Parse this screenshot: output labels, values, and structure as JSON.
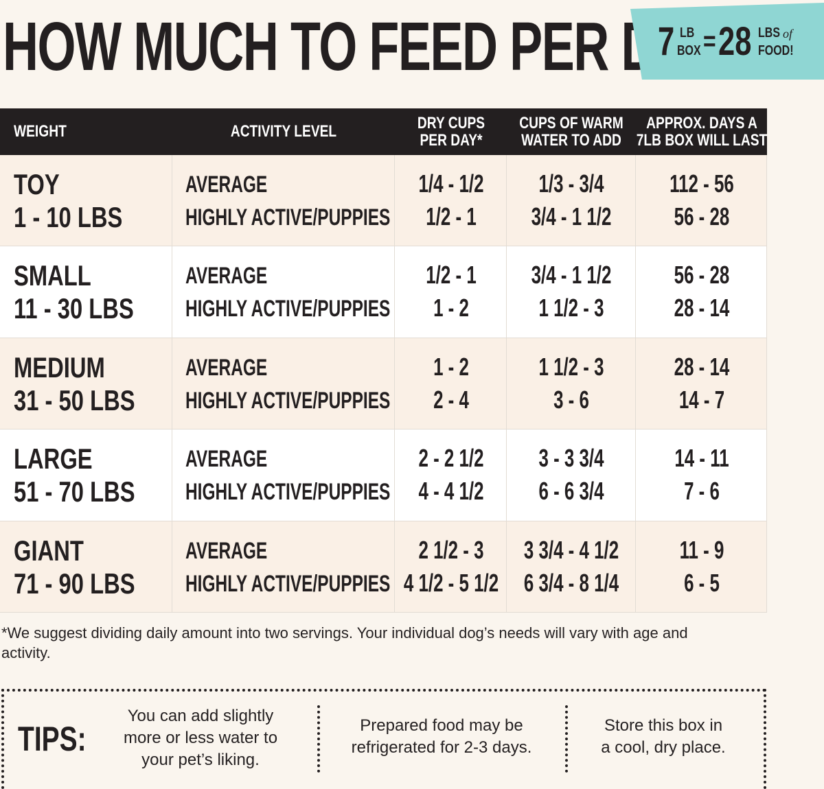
{
  "title": "HOW MUCH TO FEED PER DAY",
  "badge": {
    "left_number": "7",
    "left_unit": [
      "LB",
      "BOX"
    ],
    "equals": "=",
    "right_number": "28",
    "right_unit": [
      "LBS",
      "FOOD!"
    ],
    "right_of": "of"
  },
  "table": {
    "headers": [
      [
        "WEIGHT"
      ],
      [
        "ACTIVITY LEVEL"
      ],
      [
        "DRY CUPS",
        "PER DAY*"
      ],
      [
        "CUPS OF WARM",
        "WATER TO ADD"
      ],
      [
        "APPROX. DAYS A",
        "7LB BOX WILL LAST"
      ]
    ],
    "rows": [
      {
        "size": "TOY",
        "weight": "1 - 10 LBS",
        "levels": [
          {
            "activity": "AVERAGE",
            "dry": "1/4 - 1/2",
            "water": "1/3 - 3/4",
            "days": "112 - 56"
          },
          {
            "activity": "HIGHLY ACTIVE/PUPPIES",
            "dry": "1/2 - 1",
            "water": "3/4 - 1 1/2",
            "days": "56 - 28"
          }
        ]
      },
      {
        "size": "SMALL",
        "weight": "11 - 30 LBS",
        "levels": [
          {
            "activity": "AVERAGE",
            "dry": "1/2 - 1",
            "water": "3/4 - 1 1/2",
            "days": "56 - 28"
          },
          {
            "activity": "HIGHLY ACTIVE/PUPPIES",
            "dry": "1 - 2",
            "water": "1 1/2 - 3",
            "days": "28 - 14"
          }
        ]
      },
      {
        "size": "MEDIUM",
        "weight": "31 - 50 LBS",
        "levels": [
          {
            "activity": "AVERAGE",
            "dry": "1 - 2",
            "water": "1 1/2 - 3",
            "days": "28 - 14"
          },
          {
            "activity": "HIGHLY ACTIVE/PUPPIES",
            "dry": "2 - 4",
            "water": "3 - 6",
            "days": "14 - 7"
          }
        ]
      },
      {
        "size": "LARGE",
        "weight": "51 - 70 LBS",
        "levels": [
          {
            "activity": "AVERAGE",
            "dry": "2 - 2 1/2",
            "water": "3 - 3 3/4",
            "days": "14 - 11"
          },
          {
            "activity": "HIGHLY ACTIVE/PUPPIES",
            "dry": "4 - 4 1/2",
            "water": "6 - 6 3/4",
            "days": "7 - 6"
          }
        ]
      },
      {
        "size": "GIANT",
        "weight": "71 - 90 LBS",
        "levels": [
          {
            "activity": "AVERAGE",
            "dry": "2 1/2 - 3",
            "water": "3 3/4 - 4 1/2",
            "days": "11 - 9"
          },
          {
            "activity": "HIGHLY ACTIVE/PUPPIES",
            "dry": "4 1/2 - 5 1/2",
            "water": "6 3/4 - 8 1/4",
            "days": "6 - 5"
          }
        ]
      }
    ]
  },
  "footnote": "*We suggest dividing daily amount into two servings. Your individual dog’s needs will vary with age and activity.",
  "tips": {
    "label": "TIPS:",
    "items": [
      [
        "You can add slightly",
        "more or less water to",
        "your pet’s liking."
      ],
      [
        "Prepared food may be",
        "refrigerated for 2-3 days."
      ],
      [
        "Store this box in",
        "a cool, dry place."
      ]
    ]
  }
}
